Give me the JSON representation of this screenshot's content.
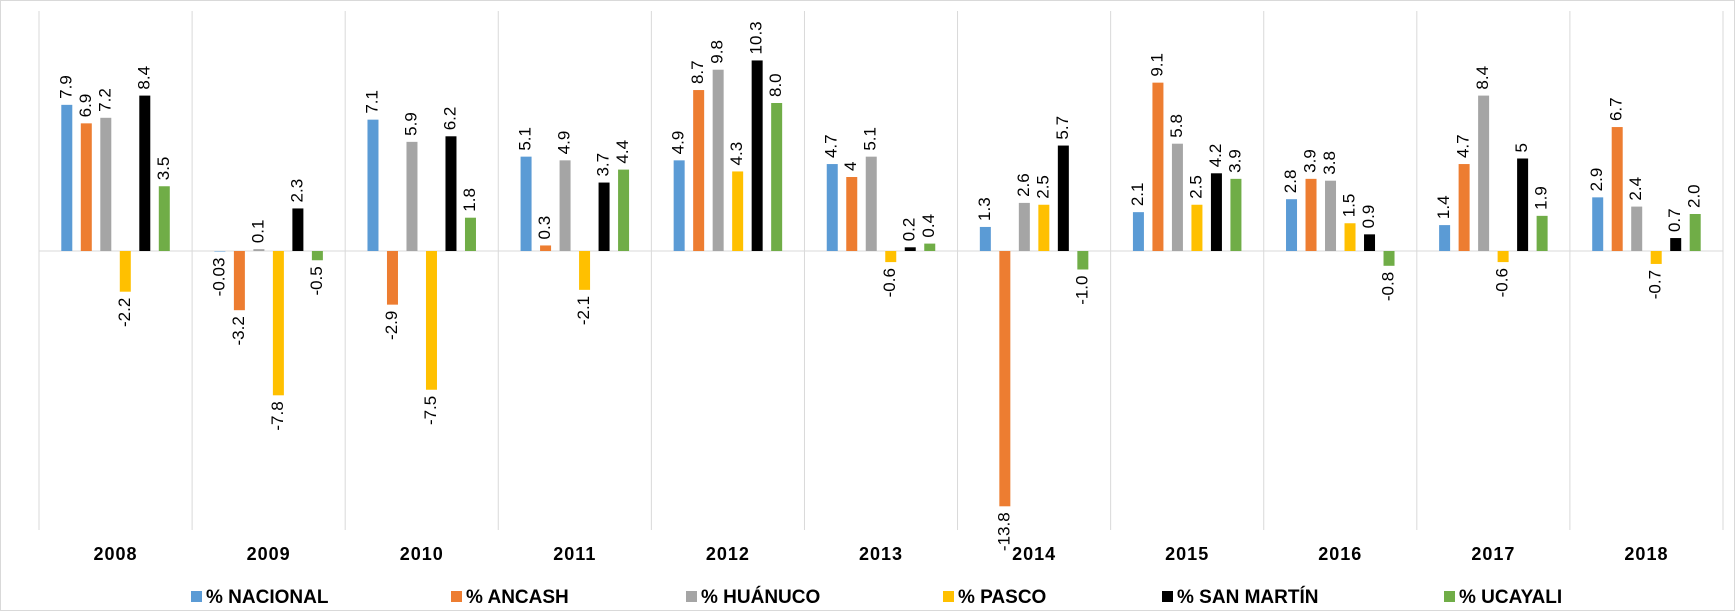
{
  "chart_data": {
    "type": "bar",
    "categories": [
      "2008",
      "2009",
      "2010",
      "2011",
      "2012",
      "2013",
      "2014",
      "2015",
      "2016",
      "2017",
      "2018"
    ],
    "series": [
      {
        "name": "% NACIONAL",
        "color": "#5b9bd5",
        "values": [
          7.9,
          -0.03,
          7.1,
          5.1,
          4.9,
          4.7,
          1.3,
          2.1,
          2.8,
          1.4,
          2.9
        ],
        "value_labels": [
          "7.9",
          "-0.03",
          "7.1",
          "5.1",
          "4.9",
          "4.7",
          "1.3",
          "2.1",
          "2.8",
          "1.4",
          "2.9"
        ]
      },
      {
        "name": "% ANCASH",
        "color": "#ed7d31",
        "values": [
          6.9,
          -3.2,
          -2.9,
          0.3,
          8.7,
          4,
          -13.8,
          9.1,
          3.9,
          4.7,
          6.7
        ],
        "value_labels": [
          "6.9",
          "-3.2",
          "-2.9",
          "0.3",
          "8.7",
          "4",
          "-13.8",
          "9.1",
          "3.9",
          "4.7",
          "6.7"
        ]
      },
      {
        "name": "% HUÁNUCO",
        "color": "#a5a5a5",
        "values": [
          7.2,
          0.1,
          5.9,
          4.9,
          9.8,
          5.1,
          2.6,
          5.8,
          3.8,
          8.4,
          2.4
        ],
        "value_labels": [
          "7.2",
          "0.1",
          "5.9",
          "4.9",
          "9.8",
          "5.1",
          "2.6",
          "5.8",
          "3.8",
          "8.4",
          "2.4"
        ]
      },
      {
        "name": "% PASCO",
        "color": "#ffc000",
        "values": [
          -2.2,
          -7.8,
          -7.5,
          -2.1,
          4.3,
          -0.6,
          2.5,
          2.5,
          1.5,
          -0.6,
          -0.7
        ],
        "value_labels": [
          "-2.2",
          "-7.8",
          "-7.5",
          "-2.1",
          "4.3",
          "-0.6",
          "2.5",
          "2.5",
          "1.5",
          "-0.6",
          "-0.7"
        ]
      },
      {
        "name": "% SAN MARTÍN",
        "color": "#000000",
        "values": [
          8.4,
          2.3,
          6.2,
          3.7,
          10.3,
          0.2,
          5.7,
          4.2,
          0.9,
          5,
          0.7
        ],
        "value_labels": [
          "8.4",
          "2.3",
          "6.2",
          "3.7",
          "10.3",
          "0.2",
          "5.7",
          "4.2",
          "0.9",
          "5",
          "0.7"
        ]
      },
      {
        "name": "% UCAYALI",
        "color": "#70ad47",
        "values": [
          3.5,
          -0.5,
          1.8,
          4.4,
          8.0,
          0.4,
          -1.0,
          3.9,
          -0.8,
          1.9,
          2.0
        ],
        "value_labels": [
          "3.5",
          "-0.5",
          "1.8",
          "4.4",
          "8.0",
          "0.4",
          "-1.0",
          "3.9",
          "-0.8",
          "1.9",
          "2.0"
        ]
      }
    ]
  }
}
